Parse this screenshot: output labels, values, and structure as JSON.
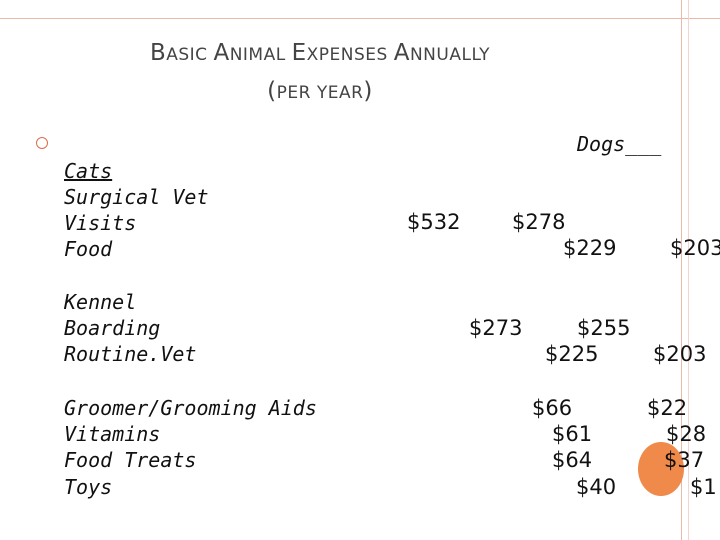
{
  "title": {
    "line1": [
      {
        "big": "B",
        "small": "ASIC "
      },
      {
        "big": "A",
        "small": "NIMAL "
      },
      {
        "big": "E",
        "small": "XPENSES "
      },
      {
        "big": "A",
        "small": "NNUALLY"
      }
    ],
    "line2": {
      "open": "(",
      "text": "PER YEAR",
      "close": ")"
    }
  },
  "header": {
    "dogs": "Dogs___"
  },
  "categories": {
    "cats": "Cats",
    "surgical_vet": "Surgical Vet",
    "visits": "Visits",
    "food": "Food",
    "kennel": "Kennel",
    "boarding": "Boarding",
    "routine_vet": "Routine.Vet",
    "groomer": "Groomer/Grooming Aids",
    "vitamins": "Vitamins",
    "food_treats": "Food Treats",
    "toys": "Toys"
  },
  "values": {
    "v532": "$532",
    "v278": "$278",
    "v229": "$229",
    "v203a": "$203",
    "v273": "$273",
    "v255": "$255",
    "v225": "$225",
    "v203b": "$203",
    "v66": "$66",
    "v22": "$22",
    "v61": "$61",
    "v28": "$28",
    "v64": "$64",
    "v37": "$37",
    "v40": "$40",
    "v1": "$1"
  },
  "colors": {
    "accent": "#f08a4b",
    "frame": "#e9b9a9",
    "bullet": "#d96f4b"
  }
}
